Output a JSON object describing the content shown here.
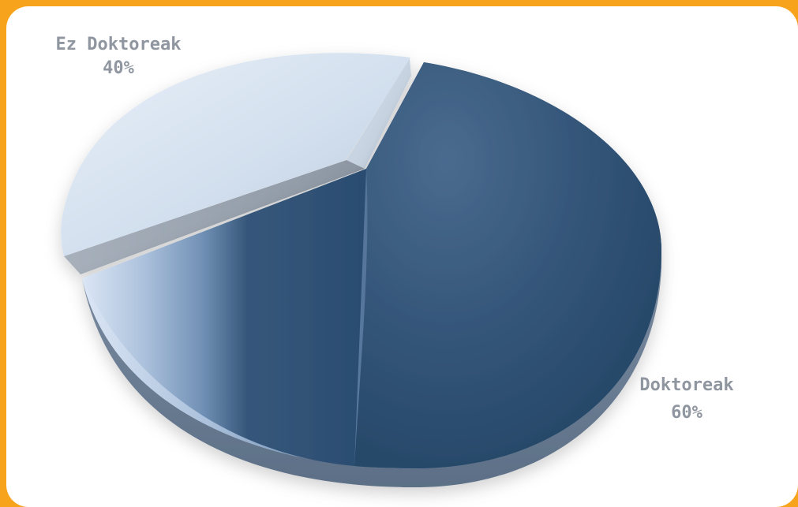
{
  "chart_data": {
    "type": "pie",
    "title": "",
    "slices": [
      {
        "label": "Ez Doktoreak",
        "value": 40,
        "value_label": "40%",
        "color": "#cfdceb"
      },
      {
        "label": "Doktoreak",
        "value": 60,
        "value_label": "60%",
        "color": "#315276"
      }
    ],
    "style": "3d-exploded",
    "legend": "none",
    "border_color": "#f7a41c"
  }
}
